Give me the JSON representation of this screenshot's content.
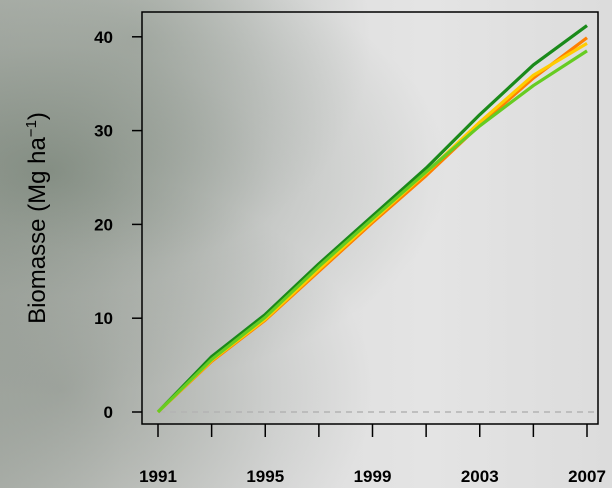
{
  "chart_data": {
    "type": "line",
    "ylabel": "Biomasse (Mg ha",
    "ylabel_sup": "−1",
    "ylabel_close": ")",
    "xlabel": "",
    "x_ticks": [
      "1991",
      "1995",
      "1999",
      "2003",
      "2007"
    ],
    "y_ticks": [
      "0",
      "10",
      "20",
      "30",
      "40"
    ],
    "xlim": [
      1991,
      2007
    ],
    "ylim": [
      0,
      42
    ],
    "grid": false,
    "zero_line": true,
    "x": [
      1991,
      1993,
      1995,
      1997,
      1999,
      2001,
      2003,
      2005,
      2007
    ],
    "series": [
      {
        "color": "#1a8a1a",
        "values": [
          0,
          5.9,
          10.4,
          15.8,
          20.9,
          26.0,
          31.7,
          37.0,
          41.2
        ]
      },
      {
        "color": "#ff7f00",
        "values": [
          0,
          5.4,
          9.8,
          15.0,
          20.2,
          25.2,
          30.6,
          35.6,
          39.9
        ]
      },
      {
        "color": "#ffcc00",
        "values": [
          0,
          5.5,
          9.9,
          15.2,
          20.4,
          25.5,
          30.9,
          35.9,
          39.3
        ]
      },
      {
        "color": "#66cc22",
        "values": [
          0,
          5.6,
          10.1,
          15.5,
          20.6,
          25.6,
          30.5,
          34.8,
          38.5
        ]
      }
    ]
  }
}
